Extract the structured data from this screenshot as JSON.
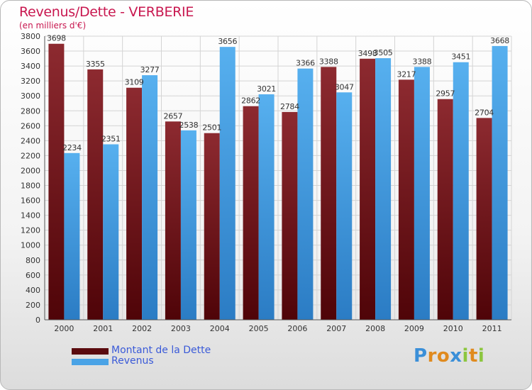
{
  "header": {
    "title": "Revenus/Dette - VERBERIE",
    "subtitle": "(en milliers d'€)"
  },
  "chart_data": {
    "type": "bar",
    "categories": [
      "2000",
      "2001",
      "2002",
      "2003",
      "2004",
      "2005",
      "2006",
      "2007",
      "2008",
      "2009",
      "2010",
      "2011"
    ],
    "series": [
      {
        "name": "Montant de la Dette",
        "color": "#7a1f24",
        "values": [
          3698,
          3355,
          3109,
          2657,
          2501,
          2862,
          2784,
          3388,
          3498,
          3217,
          2957,
          2704
        ],
        "labels": [
          "3698",
          "3355",
          "3109",
          "2657",
          "2501",
          "2862",
          "2784",
          "3388",
          "3498",
          "3217",
          "2957",
          "2704"
        ]
      },
      {
        "name": "Revenus",
        "color": "#4aa3e6",
        "values": [
          2234,
          2351,
          3277,
          2538,
          3656,
          3021,
          3366,
          3047,
          3505,
          3388,
          3451,
          3668
        ],
        "labels": [
          "2234",
          "2351",
          "3277",
          "2538",
          "3656",
          "3021",
          "3366",
          "3047",
          "3505",
          "3388",
          "3451",
          "3668"
        ]
      }
    ],
    "ylim": [
      0,
      3800
    ],
    "yticks": [
      0,
      200,
      400,
      600,
      800,
      1000,
      1200,
      1400,
      1600,
      1800,
      2000,
      2200,
      2400,
      2600,
      2800,
      3000,
      3200,
      3400,
      3600,
      3800
    ],
    "ytick_labels": [
      "0",
      "200",
      "400",
      "600",
      "800",
      "1000",
      "1200",
      "1400",
      "1600",
      "1800",
      "2000",
      "2200",
      "2400",
      "2600",
      "2800",
      "3000",
      "3200",
      "3400",
      "3600",
      "3800"
    ],
    "grid": true,
    "legend_position": "bottom-left"
  },
  "legend": [
    {
      "label": "Montant de la Dette",
      "color": "#7a1f24"
    },
    {
      "label": "Revenus",
      "color": "#4aa3e6"
    }
  ],
  "logo": {
    "letters": [
      "P",
      "r",
      "o",
      "x",
      "i",
      "t",
      "i"
    ],
    "colors": [
      "#3a8fd8",
      "#e08a1e",
      "#e08a1e",
      "#3a8fd8",
      "#8cc63f",
      "#e08a1e",
      "#8cc63f"
    ]
  }
}
